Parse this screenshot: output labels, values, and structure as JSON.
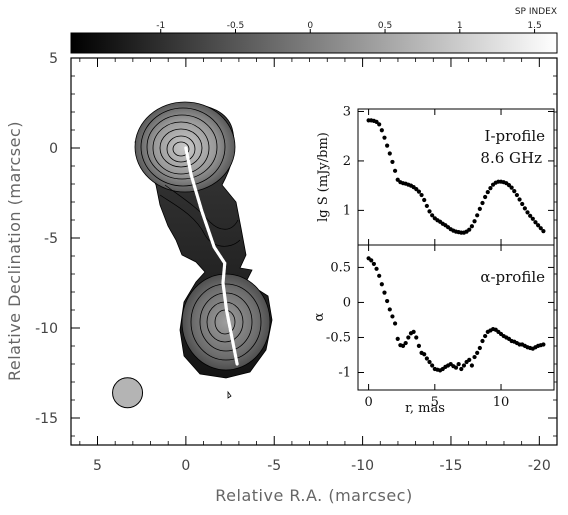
{
  "chart_data": [
    {
      "type": "heatmap",
      "colorbar": {
        "title": "SP INDEX",
        "range": [
          -1.6,
          1.65
        ],
        "ticks": [
          "-1",
          "-0.5",
          "0",
          "0.5",
          "1",
          "1.5"
        ],
        "tick_values": [
          -1,
          -0.5,
          0,
          0.5,
          1,
          1.5
        ],
        "colormap": "grayscale, black (low) to white (high)"
      },
      "xlabel": "Relative R.A. (marcsec)",
      "ylabel": "Relative Declination (marcsec)",
      "xlim": [
        6.5,
        -21
      ],
      "ylim": [
        -16.5,
        5
      ],
      "x_ticks": [
        "5",
        "0",
        "-5",
        "-10",
        "-15",
        "-20"
      ],
      "x_tick_values": [
        5,
        0,
        -5,
        -10,
        -15,
        -20
      ],
      "y_ticks": [
        "5",
        "0",
        "-5",
        "-10",
        "-15"
      ],
      "y_tick_values": [
        5,
        0,
        -5,
        -10,
        -15
      ],
      "contour_peaks": [
        {
          "x": 0,
          "y": 0,
          "levels": 8
        },
        {
          "x": -2.3,
          "y": -9.5,
          "levels": 7
        }
      ],
      "ridge_line": [
        [
          0,
          0
        ],
        [
          -0.3,
          -1.5
        ],
        [
          -0.9,
          -3.5
        ],
        [
          -1.6,
          -5.5
        ],
        [
          -2.2,
          -6.4
        ],
        [
          -2.1,
          -7.5
        ],
        [
          -2.3,
          -9
        ],
        [
          -2.6,
          -10.5
        ],
        [
          -2.9,
          -12
        ]
      ],
      "beam": {
        "x": 3.3,
        "y": -13.6,
        "major": 1.6,
        "minor": 1.6
      }
    },
    {
      "type": "scatter",
      "title": "I-profile",
      "subtitle": "8.6 GHz",
      "ylabel": "lg S (mJy/bm)",
      "xlim": [
        -0.8,
        14
      ],
      "ylim": [
        0.3,
        3.05
      ],
      "y_ticks": [
        "1",
        "2",
        "3"
      ],
      "y_tick_values": [
        1,
        2,
        3
      ],
      "x": [
        0,
        0.2,
        0.4,
        0.6,
        0.8,
        1.0,
        1.2,
        1.4,
        1.6,
        1.8,
        2.0,
        2.2,
        2.4,
        2.6,
        2.8,
        3.0,
        3.2,
        3.4,
        3.6,
        3.8,
        4.0,
        4.2,
        4.4,
        4.6,
        4.8,
        5.0,
        5.2,
        5.4,
        5.6,
        5.8,
        6.0,
        6.2,
        6.4,
        6.6,
        6.8,
        7.0,
        7.2,
        7.4,
        7.6,
        7.8,
        8.0,
        8.2,
        8.4,
        8.6,
        8.8,
        9.0,
        9.2,
        9.4,
        9.6,
        9.8,
        10.0,
        10.2,
        10.4,
        10.6,
        10.8,
        11.0,
        11.2,
        11.4,
        11.6,
        11.8,
        12.0,
        12.2,
        12.4,
        12.6,
        12.8,
        13.0,
        13.2
      ],
      "y": [
        2.82,
        2.82,
        2.81,
        2.79,
        2.74,
        2.62,
        2.47,
        2.31,
        2.15,
        1.98,
        1.8,
        1.62,
        1.57,
        1.55,
        1.54,
        1.52,
        1.5,
        1.47,
        1.43,
        1.38,
        1.31,
        1.21,
        1.09,
        0.98,
        0.9,
        0.84,
        0.8,
        0.77,
        0.73,
        0.7,
        0.66,
        0.62,
        0.59,
        0.57,
        0.56,
        0.55,
        0.55,
        0.57,
        0.61,
        0.68,
        0.78,
        0.9,
        1.03,
        1.15,
        1.27,
        1.37,
        1.45,
        1.52,
        1.56,
        1.58,
        1.58,
        1.57,
        1.55,
        1.51,
        1.46,
        1.39,
        1.31,
        1.22,
        1.13,
        1.04,
        0.96,
        0.89,
        0.83,
        0.76,
        0.7,
        0.64,
        0.58
      ]
    },
    {
      "type": "scatter",
      "title": "α-profile",
      "xlabel": "r, mas",
      "ylabel": "α",
      "xlim": [
        -0.8,
        14
      ],
      "ylim": [
        -1.25,
        0.82
      ],
      "x_ticks": [
        "0",
        "5",
        "10"
      ],
      "x_tick_values": [
        0,
        5,
        10
      ],
      "y_ticks": [
        "-1",
        "-0.5",
        "0",
        "0.5"
      ],
      "y_tick_values": [
        -1,
        -0.5,
        0,
        0.5
      ],
      "x": [
        0,
        0.2,
        0.4,
        0.6,
        0.8,
        1.0,
        1.2,
        1.4,
        1.6,
        1.8,
        2.0,
        2.2,
        2.4,
        2.6,
        2.8,
        3.0,
        3.2,
        3.4,
        3.6,
        3.8,
        4.0,
        4.2,
        4.4,
        4.6,
        4.8,
        5.0,
        5.2,
        5.4,
        5.6,
        5.8,
        6.0,
        6.2,
        6.4,
        6.6,
        6.8,
        7.0,
        7.2,
        7.4,
        7.6,
        7.8,
        8.0,
        8.2,
        8.4,
        8.6,
        8.8,
        9.0,
        9.2,
        9.4,
        9.6,
        9.8,
        10.0,
        10.2,
        10.4,
        10.6,
        10.8,
        11.0,
        11.2,
        11.4,
        11.6,
        11.8,
        12.0,
        12.2,
        12.4,
        12.6,
        12.8,
        13.0,
        13.2
      ],
      "y": [
        0.63,
        0.6,
        0.55,
        0.48,
        0.38,
        0.26,
        0.14,
        0.02,
        -0.1,
        -0.2,
        -0.3,
        -0.52,
        -0.61,
        -0.62,
        -0.58,
        -0.5,
        -0.44,
        -0.42,
        -0.5,
        -0.62,
        -0.72,
        -0.74,
        -0.8,
        -0.85,
        -0.9,
        -0.95,
        -0.96,
        -0.97,
        -0.95,
        -0.92,
        -0.9,
        -0.88,
        -0.91,
        -0.93,
        -0.88,
        -0.95,
        -0.9,
        -0.85,
        -0.82,
        -0.9,
        -0.78,
        -0.72,
        -0.65,
        -0.55,
        -0.48,
        -0.42,
        -0.4,
        -0.38,
        -0.39,
        -0.42,
        -0.45,
        -0.48,
        -0.5,
        -0.52,
        -0.55,
        -0.56,
        -0.58,
        -0.6,
        -0.6,
        -0.62,
        -0.64,
        -0.65,
        -0.66,
        -0.64,
        -0.62,
        -0.61,
        -0.6
      ]
    }
  ]
}
